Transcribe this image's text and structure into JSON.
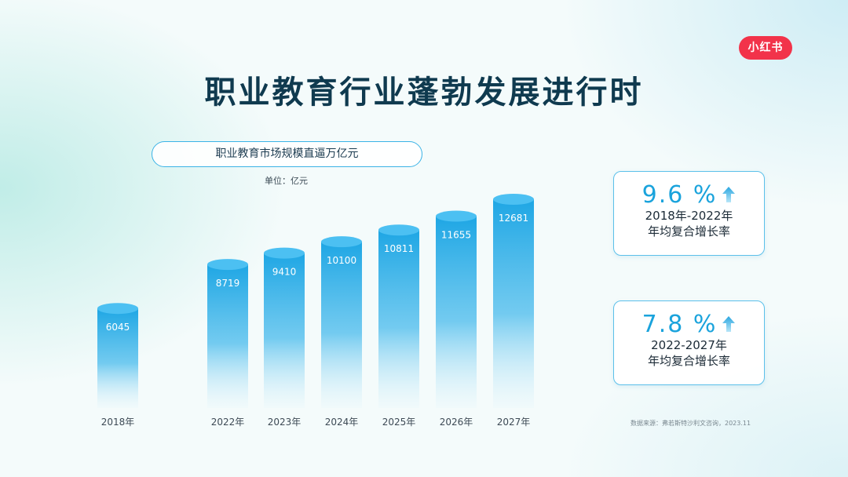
{
  "logo": {
    "text": "小红书"
  },
  "title": "职业教育行业蓬勃发展进行时",
  "chart_data": {
    "type": "bar",
    "title": "职业教育市场规模直逼万亿元",
    "unit": "单位：亿元",
    "categories": [
      "2018年",
      "2022年",
      "2023年",
      "2024年",
      "2025年",
      "2026年",
      "2027年"
    ],
    "values": [
      6045,
      8719,
      9410,
      10100,
      10811,
      11655,
      12681
    ],
    "ylim": [
      0,
      13000
    ],
    "grid": false
  },
  "cards": [
    {
      "rate": "9.6 %",
      "line1": "2018年-2022年",
      "line2": "年均复合增长率"
    },
    {
      "rate": "7.8 %",
      "line1": "2022-2027年",
      "line2": "年均复合增长率"
    }
  ],
  "colors": {
    "bar_top": "#1ea6e4",
    "bar_cap": "#4cc0f2",
    "accent": "#1aa3dc",
    "logo_bg": "#f2334a",
    "title": "#0f3a4f"
  },
  "icons": [
    "up-arrow-icon"
  ],
  "source": "数据来源：弗若斯特沙利文咨询，2023.11"
}
